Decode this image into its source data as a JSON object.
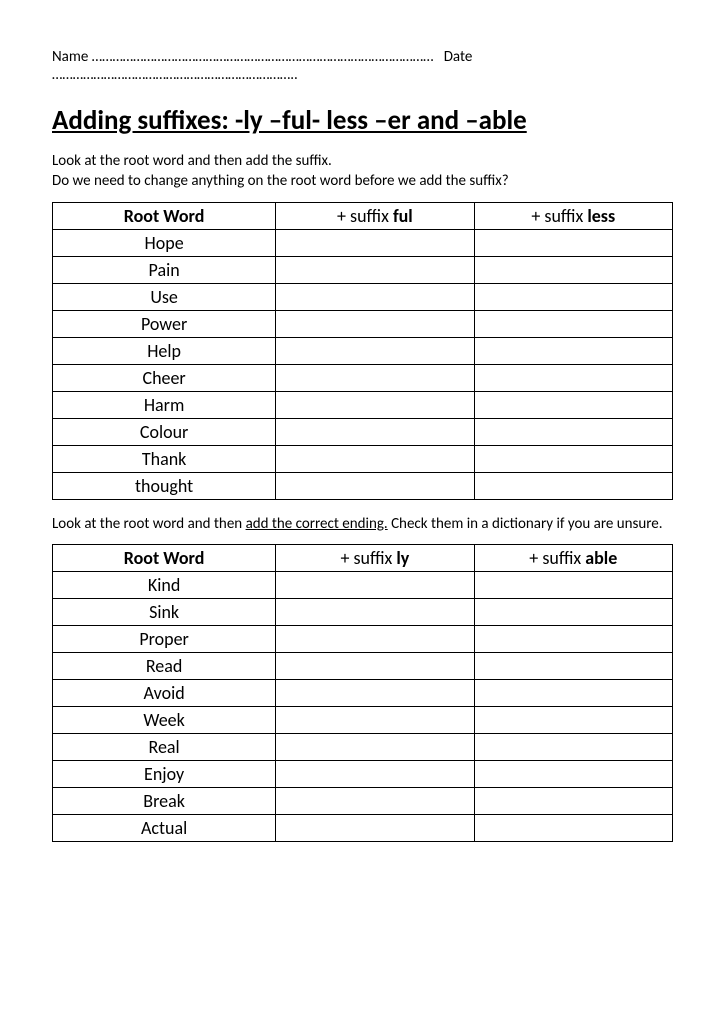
{
  "header": {
    "name_label": "Name",
    "name_dots": "………………………………………………………………………………………",
    "date_label": "Date",
    "date_dots": "…………………………………………………………….."
  },
  "title": "Adding suffixes:  -ly –ful- less –er  and –able",
  "instr1_line1": "Look at the root word and then add the suffix.",
  "instr1_line2": " Do we need to change anything on the root word before we add the suffix?",
  "table1": {
    "headers": {
      "root": "Root Word",
      "s1_pre": "+ suffix ",
      "s1_b": "ful",
      "s2_pre": "+ suffix ",
      "s2_b": "less"
    },
    "rows": [
      "Hope",
      "Pain",
      "Use",
      "Power",
      "Help",
      "Cheer",
      "Harm",
      "Colour",
      "Thank",
      "thought"
    ]
  },
  "instr2_pre": "Look at the root word and then ",
  "instr2_u": "add the correct ending.",
  "instr2_post": "  Check them in a dictionary if you are unsure.",
  "table2": {
    "headers": {
      "root": "Root Word",
      "s1_pre": "+ suffix ",
      "s1_b": "ly",
      "s2_pre": "+ suffix ",
      "s2_b": "able"
    },
    "rows": [
      "Kind",
      "Sink",
      "Proper",
      "Read",
      "Avoid",
      "Week",
      "Real",
      "Enjoy",
      "Break",
      "Actual"
    ]
  }
}
